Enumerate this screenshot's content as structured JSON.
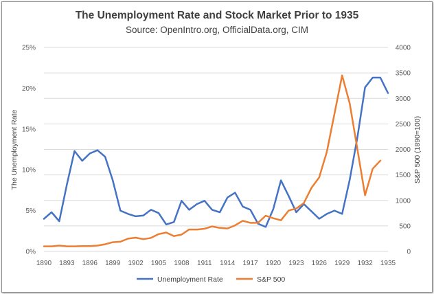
{
  "chart_data": {
    "type": "line",
    "title": "The Unemployment Rate  and Stock Market Prior to 1935",
    "subtitle": "Source: OpenIntro.org, OfficialData.org, CIM",
    "ylabel_left": "The Unemployment Rate",
    "ylabel_right": "S&P 500 (1890=100)",
    "ylim_left": [
      0,
      25
    ],
    "ylim_right": [
      0,
      4000
    ],
    "xlim": [
      1890,
      1935
    ],
    "x_ticks": [
      "1890",
      "1893",
      "1896",
      "1899",
      "1902",
      "1905",
      "1908",
      "1911",
      "1914",
      "1917",
      "1920",
      "1923",
      "1926",
      "1929",
      "1932",
      "1935"
    ],
    "y_ticks_left": [
      "0%",
      "5%",
      "10%",
      "15%",
      "20%",
      "25%"
    ],
    "y_ticks_right": [
      "0",
      "500",
      "1000",
      "1500",
      "2000",
      "2500",
      "3000",
      "3500",
      "4000"
    ],
    "x": [
      1890,
      1891,
      1892,
      1893,
      1894,
      1895,
      1896,
      1897,
      1898,
      1899,
      1900,
      1901,
      1902,
      1903,
      1904,
      1905,
      1906,
      1907,
      1908,
      1909,
      1910,
      1911,
      1912,
      1913,
      1914,
      1915,
      1916,
      1917,
      1918,
      1919,
      1920,
      1921,
      1922,
      1923,
      1924,
      1925,
      1926,
      1927,
      1928,
      1929,
      1930,
      1931,
      1932,
      1933,
      1934,
      1935
    ],
    "series": [
      {
        "name": "Unemployment Rate",
        "axis": "left",
        "color": "#4472C4",
        "values": [
          4.0,
          4.8,
          3.7,
          8.2,
          12.3,
          11.1,
          12.0,
          12.4,
          11.6,
          8.7,
          5.0,
          4.6,
          4.3,
          4.4,
          5.1,
          4.7,
          3.3,
          3.6,
          6.2,
          5.1,
          5.8,
          6.2,
          5.1,
          4.8,
          6.6,
          7.2,
          5.5,
          5.1,
          3.4,
          3.0,
          5.2,
          8.7,
          6.8,
          4.8,
          5.8,
          4.9,
          4.0,
          4.6,
          5.0,
          4.6,
          8.8,
          14.0,
          20.1,
          21.3,
          20.8,
          19.5
        ],
        "values_adjusted_end": [
          21.3,
          19.4
        ]
      },
      {
        "name": "S&P 500",
        "axis": "right",
        "color": "#ED7D31",
        "values": [
          100,
          100,
          115,
          100,
          100,
          105,
          105,
          115,
          140,
          180,
          190,
          250,
          270,
          240,
          265,
          340,
          370,
          300,
          330,
          430,
          430,
          445,
          490,
          460,
          450,
          510,
          600,
          560,
          560,
          700,
          650,
          610,
          800,
          840,
          950,
          1250,
          1450,
          1950,
          2700,
          3450,
          2900,
          2000,
          1100,
          1620,
          1780,
          null
        ]
      }
    ],
    "legend": {
      "placement": "bottom",
      "items": [
        "Unemployment Rate",
        "S&P 500"
      ]
    }
  }
}
